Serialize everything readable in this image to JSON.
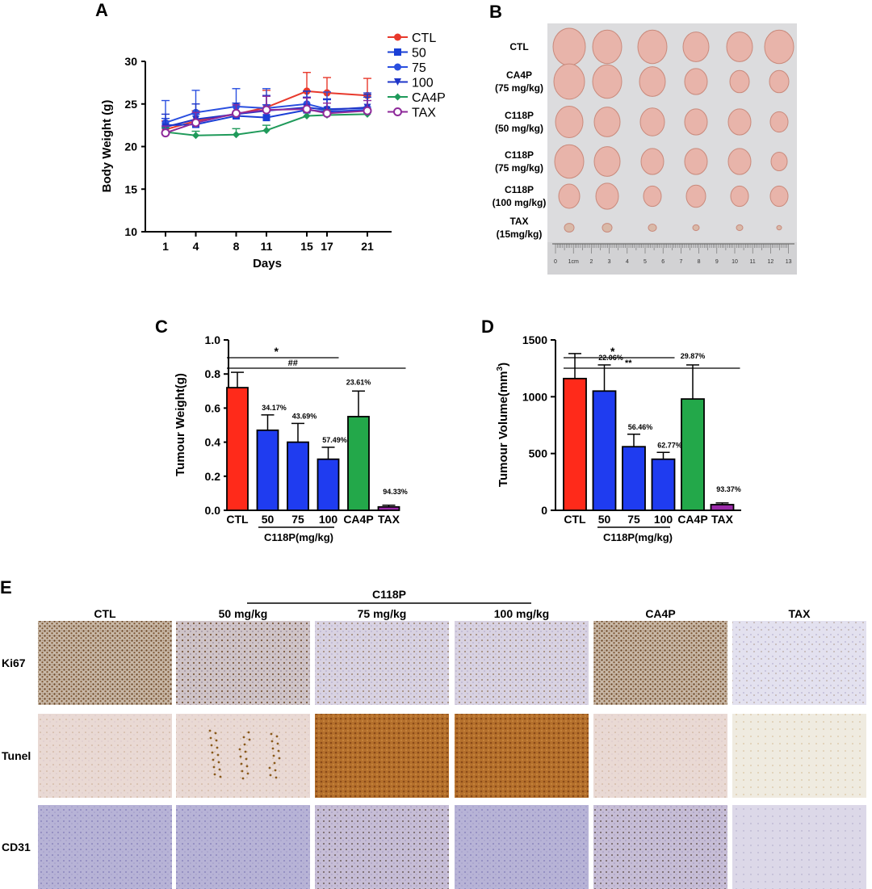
{
  "panels": {
    "A": {
      "letter": "A"
    },
    "B": {
      "letter": "B"
    },
    "C": {
      "letter": "C"
    },
    "D": {
      "letter": "D"
    },
    "E": {
      "letter": "E"
    }
  },
  "colors": {
    "CTL": "#e8392c",
    "50": "#1a3fd6",
    "75": "#2a4fe0",
    "100": "#1e35c8",
    "CA4P": "#1f9a5a",
    "TAX": "#8e2a9a",
    "bar_ctl": "#ff2a1a",
    "bar_c118p": "#1f3cf0",
    "bar_ca4p": "#23a84a",
    "bar_tax": "#9a2aa8"
  },
  "chart_data": [
    {
      "panel": "A",
      "type": "line",
      "title": "",
      "xlabel": "Days",
      "ylabel": "Body Weight (g)",
      "x": [
        1,
        4,
        8,
        11,
        15,
        17,
        21
      ],
      "x_ticks": [
        "1",
        "4",
        "8",
        "11",
        "15",
        "17",
        "21"
      ],
      "ylim": [
        10,
        30
      ],
      "y_ticks": [
        "10",
        "15",
        "20",
        "25",
        "30"
      ],
      "legend_position": "top-right",
      "series": [
        {
          "name": "CTL",
          "marker": "circle-filled",
          "values": [
            22.0,
            23.0,
            23.8,
            24.6,
            26.5,
            26.3,
            26.0
          ],
          "err": [
            1.0,
            1.2,
            1.3,
            2.0,
            2.2,
            1.8,
            2.0
          ]
        },
        {
          "name": "50",
          "marker": "square",
          "values": [
            22.5,
            22.6,
            23.6,
            23.4,
            24.3,
            24.1,
            24.3
          ],
          "err": [
            0.8,
            1.2,
            1.5,
            1.5,
            1.5,
            1.4,
            1.5
          ]
        },
        {
          "name": "75",
          "marker": "circle-filled",
          "values": [
            22.8,
            24.0,
            24.7,
            24.5,
            25.0,
            24.4,
            24.5
          ],
          "err": [
            2.6,
            2.6,
            2.1,
            2.3,
            1.5,
            2.0,
            1.8
          ]
        },
        {
          "name": "100",
          "marker": "triangle-down",
          "values": [
            22.3,
            23.2,
            23.8,
            24.2,
            24.6,
            24.3,
            24.6
          ],
          "err": [
            1.5,
            1.8,
            1.3,
            1.8,
            1.9,
            1.3,
            1.5
          ]
        },
        {
          "name": "CA4P",
          "marker": "diamond",
          "values": [
            21.7,
            21.3,
            21.4,
            21.9,
            23.6,
            23.7,
            23.8
          ],
          "err": [
            0.5,
            0.5,
            0.7,
            0.6,
            0.5,
            0.6,
            0.6
          ]
        },
        {
          "name": "TAX",
          "marker": "circle-open",
          "values": [
            21.6,
            22.8,
            23.9,
            24.3,
            24.4,
            23.9,
            24.2
          ],
          "err": [
            0.8,
            1.2,
            1.0,
            1.6,
            1.3,
            1.2,
            1.2
          ]
        }
      ]
    },
    {
      "panel": "C",
      "type": "bar",
      "title": "",
      "xlabel": "",
      "ylabel": "Tumour Weight(g)",
      "categories": [
        "CTL",
        "50",
        "75",
        "100",
        "CA4P",
        "TAX"
      ],
      "values": [
        0.72,
        0.47,
        0.4,
        0.3,
        0.55,
        0.02
      ],
      "err": [
        0.09,
        0.09,
        0.11,
        0.07,
        0.15,
        0.01
      ],
      "pct_labels": [
        "",
        "34.17%",
        "43.69%",
        "57.49%",
        "23.61%",
        "94.33%"
      ],
      "ylim": [
        0,
        1.0
      ],
      "y_ticks": [
        "0.0",
        "0.2",
        "0.4",
        "0.6",
        "0.8",
        "1.0"
      ],
      "group_label": "C118P(mg/kg)",
      "sig": [
        {
          "symbol": "*",
          "from": "CTL",
          "to": "100"
        },
        {
          "symbol": "##",
          "from": "CTL",
          "to": "TAX"
        }
      ]
    },
    {
      "panel": "D",
      "type": "bar",
      "title": "",
      "xlabel": "",
      "ylabel": "Tumour Volume(mm",
      "ylabel_sup": "3",
      "ylabel_end": ")",
      "categories": [
        "CTL",
        "50",
        "75",
        "100",
        "CA4P",
        "TAX"
      ],
      "values": [
        1160,
        1050,
        560,
        450,
        980,
        50
      ],
      "err": [
        220,
        230,
        110,
        60,
        300,
        15
      ],
      "pct_labels": [
        "",
        "22.06%",
        "56.46%",
        "62.77%",
        "29.87%",
        "93.37%"
      ],
      "ylim": [
        0,
        1500
      ],
      "y_ticks": [
        "0",
        "500",
        "1000",
        "1500"
      ],
      "group_label": "C118P(mg/kg)",
      "sig": [
        {
          "symbol": "*",
          "from": "CTL",
          "to": "100"
        },
        {
          "symbol": "**",
          "from": "CTL",
          "to": "TAX"
        }
      ]
    }
  ],
  "panel_B": {
    "rows": [
      {
        "label": "CTL",
        "sub": ""
      },
      {
        "label": "CA4P",
        "sub": "(75 mg/kg)"
      },
      {
        "label": "C118P",
        "sub": "(50 mg/kg)"
      },
      {
        "label": "C118P",
        "sub": "(75 mg/kg)"
      },
      {
        "label": "C118P",
        "sub": "(100 mg/kg)"
      },
      {
        "label": "TAX",
        "sub": "(15mg/kg)"
      }
    ],
    "ruler_labels": [
      "0",
      "1cm",
      "2",
      "3",
      "4",
      "5",
      "6",
      "7",
      "8",
      "9",
      "10",
      "11",
      "12",
      "13"
    ]
  },
  "panel_E": {
    "group_title": "C118P",
    "columns": [
      "CTL",
      "50 mg/kg",
      "75 mg/kg",
      "100 mg/kg",
      "CA4P",
      "TAX"
    ],
    "rows": [
      "Ki67",
      "Tunel",
      "CD31"
    ]
  }
}
